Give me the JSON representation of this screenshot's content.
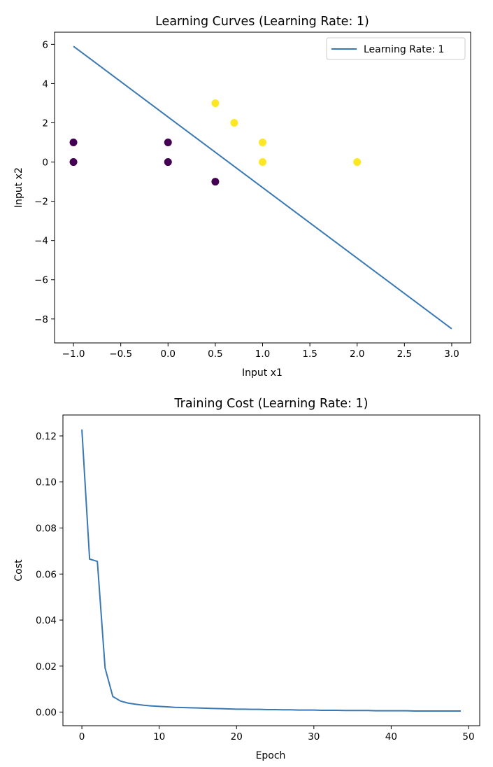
{
  "chart_data": [
    {
      "type": "scatter",
      "title": "Learning Curves (Learning Rate: 1)",
      "xlabel": "Input x1",
      "ylabel": "Input x2",
      "xlim": [
        -1.2,
        3.2
      ],
      "ylim": [
        -9.22,
        6.62
      ],
      "xticks": [
        -1.0,
        -0.5,
        0.0,
        0.5,
        1.0,
        1.5,
        2.0,
        2.5,
        3.0
      ],
      "xtick_labels": [
        "−1.0",
        "−0.5",
        "0.0",
        "0.5",
        "1.0",
        "1.5",
        "2.0",
        "2.5",
        "3.0"
      ],
      "yticks": [
        6,
        4,
        2,
        0,
        -2,
        -4,
        -6,
        -8
      ],
      "ytick_labels": [
        "6",
        "4",
        "2",
        "0",
        "−2",
        "−4",
        "−6",
        "−8"
      ],
      "points": [
        {
          "x": -1.0,
          "y": 1.0,
          "class": 0
        },
        {
          "x": -1.0,
          "y": 0.0,
          "class": 0
        },
        {
          "x": 0.0,
          "y": 1.0,
          "class": 0
        },
        {
          "x": 0.0,
          "y": 0.0,
          "class": 0
        },
        {
          "x": 0.5,
          "y": -1.0,
          "class": 0
        },
        {
          "x": 0.5,
          "y": 3.0,
          "class": 1
        },
        {
          "x": 0.7,
          "y": 2.0,
          "class": 1
        },
        {
          "x": 1.0,
          "y": 1.0,
          "class": 1
        },
        {
          "x": 1.0,
          "y": 0.0,
          "class": 1
        },
        {
          "x": 2.0,
          "y": 0.0,
          "class": 1
        }
      ],
      "class_colors": {
        "0": "#440154",
        "1": "#fde725"
      },
      "series": [
        {
          "name": "Learning Rate: 1",
          "type": "line",
          "x": [
            -1.0,
            3.0
          ],
          "y": [
            5.9,
            -8.5
          ],
          "color": "#3a78b4"
        }
      ],
      "legend": "top-right",
      "grid": false
    },
    {
      "type": "line",
      "title": "Training Cost (Learning Rate: 1)",
      "xlabel": "Epoch",
      "ylabel": "Cost",
      "xlim": [
        -2.45,
        51.45
      ],
      "ylim": [
        -0.0059,
        0.1291
      ],
      "xticks": [
        0,
        10,
        20,
        30,
        40,
        50
      ],
      "xtick_labels": [
        "0",
        "10",
        "20",
        "30",
        "40",
        "50"
      ],
      "yticks": [
        0.12,
        0.1,
        0.08,
        0.06,
        0.04,
        0.02,
        0.0
      ],
      "ytick_labels": [
        "0.12",
        "0.10",
        "0.08",
        "0.06",
        "0.04",
        "0.02",
        "0.00"
      ],
      "series": [
        {
          "type": "line",
          "color": "#3a78b4",
          "x": [
            0,
            1,
            2,
            3,
            4,
            5,
            6,
            7,
            8,
            9,
            10,
            11,
            12,
            13,
            14,
            15,
            16,
            17,
            18,
            19,
            20,
            21,
            22,
            23,
            24,
            25,
            26,
            27,
            28,
            29,
            30,
            31,
            32,
            33,
            34,
            35,
            36,
            37,
            38,
            39,
            40,
            41,
            42,
            43,
            44,
            45,
            46,
            47,
            48,
            49
          ],
          "y": [
            0.1228,
            0.0665,
            0.0655,
            0.0192,
            0.0068,
            0.0048,
            0.0039,
            0.0034,
            0.003,
            0.0027,
            0.0025,
            0.0023,
            0.0021,
            0.002,
            0.0019,
            0.0018,
            0.0017,
            0.0016,
            0.0015,
            0.0014,
            0.0013,
            0.0013,
            0.0012,
            0.0012,
            0.0011,
            0.0011,
            0.001,
            0.001,
            0.0009,
            0.0009,
            0.0009,
            0.0008,
            0.0008,
            0.0008,
            0.0007,
            0.0007,
            0.0007,
            0.0007,
            0.0006,
            0.0006,
            0.0006,
            0.0006,
            0.0006,
            0.0005,
            0.0005,
            0.0005,
            0.0005,
            0.0005,
            0.0005,
            0.0005
          ]
        }
      ],
      "grid": false
    }
  ]
}
